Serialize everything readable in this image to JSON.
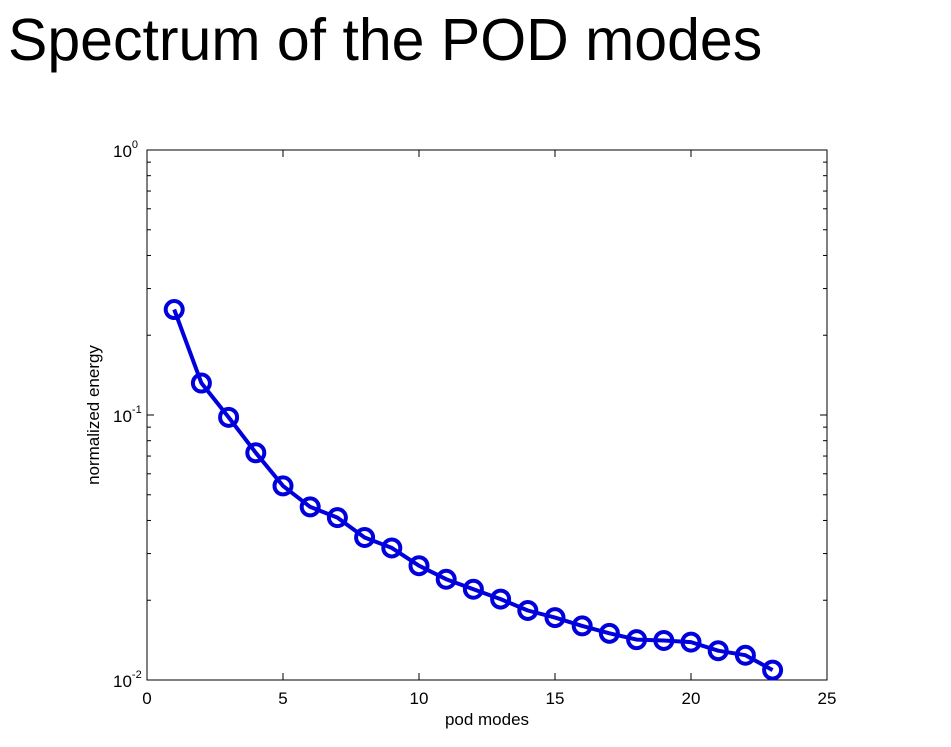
{
  "slide": {
    "title": "Spectrum of the POD modes"
  },
  "chart_data": {
    "type": "line",
    "title": "",
    "xlabel": "pod modes",
    "ylabel": "normalized energy",
    "xlim": [
      0,
      25
    ],
    "ylim": [
      0.01,
      1
    ],
    "yscale": "log",
    "x_ticks": [
      "0",
      "5",
      "10",
      "15",
      "20",
      "25"
    ],
    "y_ticks": [
      {
        "base": "10",
        "exp": "0"
      },
      {
        "base": "10",
        "exp": "-1"
      },
      {
        "base": "10",
        "exp": "-2"
      }
    ],
    "grid": false,
    "series": [
      {
        "color": "#0000dd",
        "marker": "circle",
        "x": [
          1,
          2,
          3,
          4,
          5,
          6,
          7,
          8,
          9,
          10,
          11,
          12,
          13,
          14,
          15,
          16,
          17,
          18,
          19,
          20,
          21,
          22,
          23
        ],
        "y": [
          0.25,
          0.132,
          0.098,
          0.072,
          0.054,
          0.045,
          0.041,
          0.0345,
          0.0315,
          0.027,
          0.024,
          0.022,
          0.0202,
          0.0183,
          0.0172,
          0.016,
          0.015,
          0.0142,
          0.0141,
          0.0139,
          0.0129,
          0.0124,
          0.0109
        ]
      }
    ]
  }
}
